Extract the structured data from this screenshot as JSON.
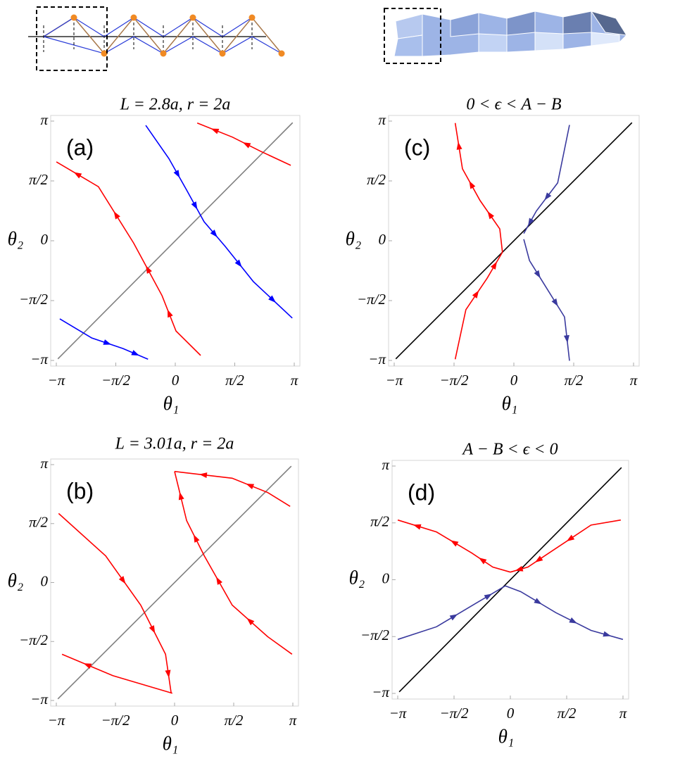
{
  "chart_data": [
    {
      "type": "line",
      "title": "L = 2.8a, r = 2a",
      "panel_label": "(a)",
      "xlabel": "θ₁",
      "ylabel": "θ₂",
      "xlim": [
        -3.1416,
        3.1416
      ],
      "ylim": [
        -3.1416,
        3.1416
      ],
      "xticks": [
        {
          "value": -3.1416,
          "label": "−π"
        },
        {
          "value": -1.5708,
          "label": "−π/2"
        },
        0,
        {
          "value": 1.5708,
          "label": "π/2"
        },
        {
          "value": 3.1416,
          "label": "π"
        }
      ],
      "yticks": [
        {
          "value": -3.1416,
          "label": "−π"
        },
        {
          "value": -1.5708,
          "label": "−π/2"
        },
        0,
        {
          "value": 1.5708,
          "label": "π/2"
        },
        {
          "value": 3.1416,
          "label": "π"
        }
      ],
      "series": [
        {
          "color": "#808080",
          "x": [
            -3.1,
            3.1
          ],
          "values": [
            -3.1,
            3.1
          ]
        },
        {
          "color": "#0000ff",
          "x": [
            -0.78,
            -0.17,
            0.3,
            0.76,
            1.32,
            2.06,
            3.09
          ],
          "values": [
            3.03,
            2.16,
            1.33,
            0.5,
            -0.15,
            -1.07,
            -2.03
          ]
        },
        {
          "color": "#ff0000",
          "x": [
            3.05,
            2.25,
            1.51,
            0.58
          ],
          "values": [
            1.98,
            2.35,
            2.72,
            3.09
          ]
        },
        {
          "color": "#ff0000",
          "x": [
            0.67,
            0.02,
            -0.35,
            -1.1,
            -2.03,
            -3.14
          ],
          "values": [
            -3.01,
            -2.37,
            -1.44,
            -0.06,
            1.42,
            2.07
          ]
        },
        {
          "color": "#0000ff",
          "x": [
            -3.05,
            -2.21,
            -1.38,
            -0.72
          ],
          "values": [
            -2.05,
            -2.55,
            -2.83,
            -3.11
          ]
        }
      ]
    },
    {
      "type": "line",
      "title": "L = 3.01a, r = 2a",
      "panel_label": "(b)",
      "xlabel": "θ₁",
      "ylabel": "θ₂",
      "xlim": [
        -3.1416,
        3.1416
      ],
      "ylim": [
        -3.1416,
        3.1416
      ],
      "xticks": [
        {
          "value": -3.1416,
          "label": "−π"
        },
        {
          "value": -1.5708,
          "label": "−π/2"
        },
        0,
        {
          "value": 1.5708,
          "label": "π/2"
        },
        {
          "value": 3.1416,
          "label": "π"
        }
      ],
      "yticks": [
        {
          "value": -3.1416,
          "label": "−π"
        },
        {
          "value": -1.5708,
          "label": "−π/2"
        },
        0,
        {
          "value": 1.5708,
          "label": "π/2"
        },
        {
          "value": 3.1416,
          "label": "π"
        }
      ],
      "series": [
        {
          "color": "#808080",
          "x": [
            -3.1,
            3.1
          ],
          "values": [
            -3.1,
            3.1
          ]
        },
        {
          "color": "#ff0000",
          "x": [
            -3.08,
            -1.83,
            -0.9,
            -0.24,
            -0.09
          ],
          "values": [
            1.84,
            0.71,
            -0.6,
            -1.91,
            -2.95
          ]
        },
        {
          "color": "#ff0000",
          "x": [
            -0.06,
            -1.64,
            -2.99
          ],
          "values": [
            -2.95,
            -2.48,
            -1.91
          ]
        },
        {
          "color": "#ff0000",
          "x": [
            3.07,
            2.47,
            1.53,
            0.0
          ],
          "values": [
            2.03,
            2.4,
            2.78,
            2.96
          ]
        },
        {
          "color": "#ff0000",
          "x": [
            3.12,
            2.47,
            1.53,
            0.79,
            0.32,
            0.0
          ],
          "values": [
            -1.91,
            -1.44,
            -0.6,
            0.71,
            1.65,
            2.96
          ]
        }
      ]
    },
    {
      "type": "line",
      "title": "0 < ϵ < A − B",
      "panel_label": "(c)",
      "xlabel": "θ₁",
      "ylabel": "θ₂",
      "xlim": [
        -3.1416,
        3.1416
      ],
      "ylim": [
        -3.1416,
        3.1416
      ],
      "xticks": [
        {
          "value": -3.1416,
          "label": "−π"
        },
        {
          "value": -1.5708,
          "label": "−π/2"
        },
        0,
        {
          "value": 1.5708,
          "label": "π/2"
        },
        {
          "value": 3.1416,
          "label": "π"
        }
      ],
      "yticks": [
        {
          "value": -3.1416,
          "label": "−π"
        },
        {
          "value": -1.5708,
          "label": "−π/2"
        },
        0,
        {
          "value": 1.5708,
          "label": "π/2"
        },
        {
          "value": 3.1416,
          "label": "π"
        }
      ],
      "series": [
        {
          "color": "#000000",
          "x": [
            -3.1,
            3.1
          ],
          "values": [
            -3.1,
            3.1
          ]
        },
        {
          "color": "#ff0000",
          "x": [
            -0.3,
            -0.37,
            -0.89,
            -1.35,
            -1.54
          ],
          "values": [
            -0.3,
            0.31,
            1.06,
            1.89,
            3.09
          ]
        },
        {
          "color": "#ff0000",
          "x": [
            -1.54,
            -1.26,
            -0.7,
            -0.3
          ],
          "values": [
            -3.11,
            -1.81,
            -0.98,
            -0.3
          ]
        },
        {
          "color": "#3a3a9e",
          "x": [
            1.46,
            1.15,
            0.59,
            0.26
          ],
          "values": [
            3.04,
            1.52,
            0.78,
            0.19
          ]
        },
        {
          "color": "#3a3a9e",
          "x": [
            0.26,
            0.41,
            0.87,
            1.33,
            1.46
          ],
          "values": [
            0.04,
            -0.52,
            -1.26,
            -2.0,
            -3.15
          ]
        }
      ]
    },
    {
      "type": "line",
      "title": "A − B < ϵ < 0",
      "panel_label": "(d)",
      "xlabel": "θ₁",
      "ylabel": "θ₂",
      "xlim": [
        -3.1416,
        3.1416
      ],
      "ylim": [
        -3.1416,
        3.1416
      ],
      "xticks": [
        {
          "value": -3.1416,
          "label": "−π"
        },
        {
          "value": -1.5708,
          "label": "−π/2"
        },
        0,
        {
          "value": 1.5708,
          "label": "π/2"
        },
        {
          "value": 3.1416,
          "label": "π"
        }
      ],
      "yticks": [
        {
          "value": -3.1416,
          "label": "−π"
        },
        {
          "value": -1.5708,
          "label": "−π/2"
        },
        0,
        {
          "value": 1.5708,
          "label": "π/2"
        },
        {
          "value": 3.1416,
          "label": "π"
        }
      ],
      "series": [
        {
          "color": "#000000",
          "x": [
            -3.1,
            3.1
          ],
          "values": [
            -3.1,
            3.1
          ]
        },
        {
          "color": "#ff0000",
          "x": [
            3.08,
            2.25,
            1.08,
            0.49,
            0.0
          ],
          "values": [
            1.65,
            1.51,
            0.74,
            0.35,
            0.21
          ]
        },
        {
          "color": "#ff0000",
          "x": [
            0.0,
            -0.49,
            -1.08,
            -2.06,
            -3.14
          ],
          "values": [
            0.21,
            0.35,
            0.74,
            1.32,
            1.65
          ]
        },
        {
          "color": "#3a3a9e",
          "x": [
            -3.14,
            -2.06,
            -1.08,
            -0.14
          ],
          "values": [
            -1.65,
            -1.3,
            -0.72,
            -0.17
          ]
        },
        {
          "color": "#3a3a9e",
          "x": [
            -0.14,
            0.29,
            1.27,
            2.25,
            3.14
          ],
          "values": [
            -0.17,
            -0.33,
            -0.91,
            -1.4,
            -1.65
          ]
        }
      ]
    }
  ]
}
